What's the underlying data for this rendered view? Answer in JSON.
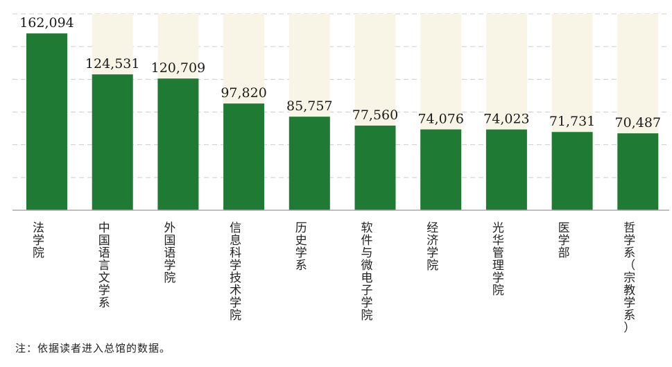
{
  "chart_data": {
    "type": "bar",
    "categories": [
      "法学院",
      "中国语言文学系",
      "外国语学院",
      "信息科学技术学院",
      "历史学系",
      "软件与微电子学院",
      "经济学院",
      "光华管理学院",
      "医学部",
      "哲学系（宗教学系）"
    ],
    "values": [
      162094,
      124531,
      120709,
      97820,
      85757,
      77560,
      74076,
      74023,
      71731,
      70487
    ],
    "value_labels": [
      "162,094",
      "124,531",
      "120,709",
      "97,820",
      "85,757",
      "77,560",
      "74,076",
      "74,023",
      "71,731",
      "70,487"
    ],
    "title": "",
    "xlabel": "",
    "ylabel": "",
    "ylim": [
      0,
      180000
    ],
    "grid": true,
    "bar_color": "#1f7a33",
    "track_color": "#f8f5e6",
    "grid_color": "#cccccc",
    "axis_color": "#aaaaaa",
    "label_color": "#1a1a1a"
  },
  "note": "注：依据读者进入总馆的数据。"
}
